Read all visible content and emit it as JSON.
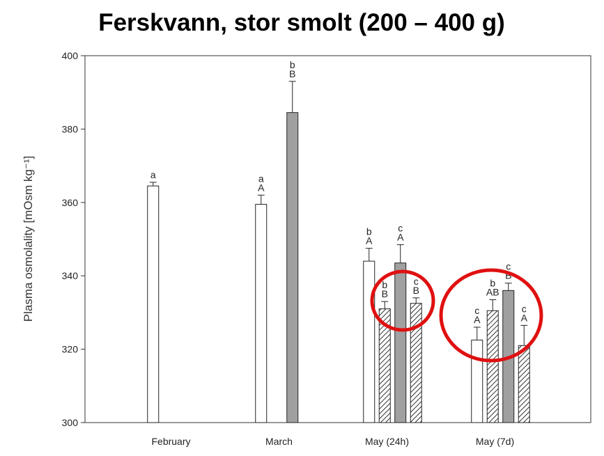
{
  "chart_data": {
    "type": "bar",
    "title": "Ferskvann, stor smolt (200 – 400 g)",
    "ylabel": "Plasma osmolality [mOsm kg⁻¹]",
    "categories": [
      "February",
      "March",
      "May (24h)",
      "May (7d)"
    ],
    "ylim": [
      300,
      400
    ],
    "yticks": [
      300,
      320,
      340,
      360,
      380,
      400
    ],
    "series": [
      {
        "color": "#ffffff",
        "hatch": false,
        "values": [
          364.5,
          359.5,
          344,
          322.5
        ],
        "errors": [
          1,
          2.5,
          3.5,
          3.5
        ],
        "lower": [
          "a",
          "a",
          "b",
          "c"
        ],
        "upper": [
          null,
          "A",
          "A",
          "A"
        ]
      },
      {
        "color": "#ffffff",
        "hatch": true,
        "values": [
          null,
          null,
          331,
          330.5
        ],
        "errors": [
          null,
          null,
          2,
          3
        ],
        "lower": [
          null,
          null,
          "b",
          "b"
        ],
        "upper": [
          null,
          null,
          "B",
          "AB"
        ]
      },
      {
        "color": "#a0a0a0",
        "hatch": false,
        "values": [
          null,
          384.5,
          343.5,
          336
        ],
        "errors": [
          null,
          8.5,
          5,
          2
        ],
        "lower": [
          null,
          "b",
          "c",
          "c"
        ],
        "upper": [
          null,
          "B",
          "A",
          "B"
        ]
      },
      {
        "color": "#ffffff",
        "hatch": true,
        "values": [
          null,
          null,
          332.5,
          321
        ],
        "errors": [
          null,
          null,
          1.5,
          5.5
        ],
        "lower": [
          null,
          null,
          "c",
          "c"
        ],
        "upper": [
          null,
          null,
          "B",
          "A"
        ]
      }
    ]
  }
}
